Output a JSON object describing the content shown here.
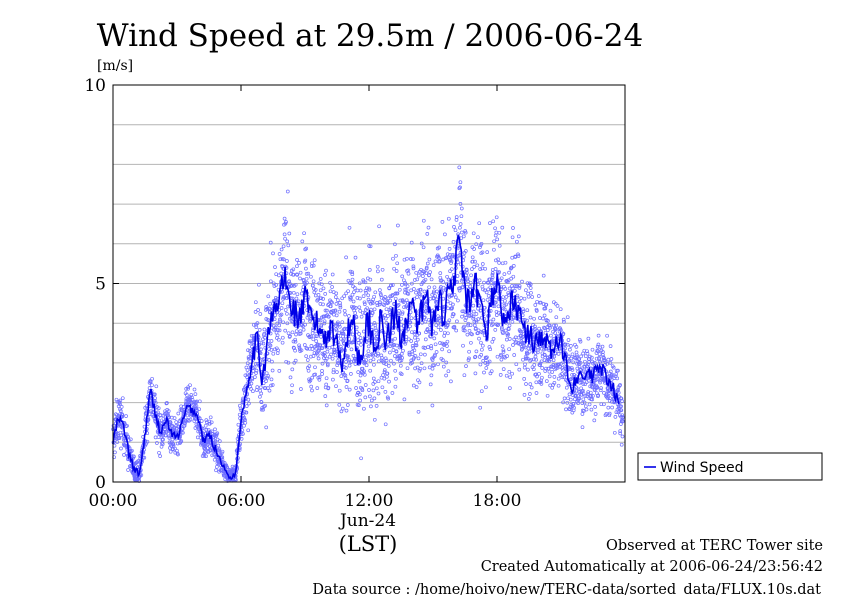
{
  "chart_data": {
    "type": "scatter",
    "title": "Wind Speed at 29.5m / 2006-06-24",
    "unit_label": "[m/s]",
    "ylim": [
      0,
      10
    ],
    "y_ticks": [
      "0",
      "5",
      "10"
    ],
    "xlim_hours": [
      0,
      24
    ],
    "x_ticks": [
      {
        "hour": 0,
        "label": "00:00"
      },
      {
        "hour": 6,
        "label": "06:00"
      },
      {
        "hour": 12,
        "label": "12:00"
      },
      {
        "hour": 18,
        "label": "18:00"
      }
    ],
    "date_label": "Jun-24",
    "x_axis_label": "(LST)",
    "grid": "horizontal",
    "legend": {
      "placement": "right",
      "entry": "Wind Speed"
    },
    "colors": {
      "points": "#6f6fff",
      "line": "#0000e6"
    },
    "series": [
      {
        "name": "Wind Speed",
        "x_hours": [
          0.0,
          0.25,
          0.5,
          0.75,
          1.0,
          1.25,
          1.5,
          1.75,
          2.0,
          2.25,
          2.5,
          2.75,
          3.0,
          3.25,
          3.5,
          3.75,
          4.0,
          4.25,
          4.5,
          4.75,
          5.0,
          5.25,
          5.5,
          5.75,
          6.0,
          6.25,
          6.5,
          6.75,
          7.0,
          7.25,
          7.5,
          7.75,
          8.0,
          8.25,
          8.5,
          8.75,
          9.0,
          9.25,
          9.5,
          9.75,
          10.0,
          10.25,
          10.5,
          10.75,
          11.0,
          11.25,
          11.5,
          11.75,
          12.0,
          12.25,
          12.5,
          12.75,
          13.0,
          13.25,
          13.5,
          13.75,
          14.0,
          14.25,
          14.5,
          14.75,
          15.0,
          15.25,
          15.5,
          15.75,
          16.0,
          16.25,
          16.5,
          16.75,
          17.0,
          17.25,
          17.5,
          17.75,
          18.0,
          18.25,
          18.5,
          18.75,
          19.0,
          19.25,
          19.5,
          19.75,
          20.0,
          20.25,
          20.5,
          20.75,
          21.0,
          21.25,
          21.5,
          21.75,
          22.0,
          22.25,
          22.5,
          22.75,
          23.0,
          23.25,
          23.5,
          23.75
        ],
        "mean": [
          1.0,
          1.6,
          1.4,
          0.7,
          0.3,
          0.2,
          1.2,
          2.3,
          1.7,
          1.2,
          1.6,
          1.2,
          1.1,
          1.5,
          1.9,
          1.8,
          1.6,
          1.0,
          1.2,
          0.9,
          0.6,
          0.3,
          0.1,
          0.2,
          1.6,
          2.3,
          3.1,
          3.6,
          2.6,
          3.6,
          4.2,
          4.5,
          5.2,
          4.6,
          4.3,
          4.1,
          4.6,
          4.2,
          4.0,
          3.8,
          3.7,
          4.0,
          3.4,
          3.1,
          3.7,
          4.2,
          3.0,
          3.6,
          4.1,
          3.3,
          4.0,
          3.6,
          3.8,
          4.3,
          3.7,
          4.1,
          4.5,
          3.8,
          4.4,
          4.6,
          3.9,
          4.7,
          4.2,
          4.9,
          5.2,
          6.2,
          4.6,
          4.4,
          4.9,
          4.3,
          3.8,
          4.6,
          5.1,
          4.2,
          4.0,
          4.7,
          4.3,
          3.8,
          3.7,
          3.5,
          3.7,
          3.6,
          3.3,
          3.4,
          3.5,
          3.0,
          2.4,
          2.7,
          2.5,
          2.8,
          2.6,
          2.9,
          2.8,
          2.4,
          2.3,
          1.9
        ],
        "spread": [
          0.5,
          0.5,
          0.5,
          0.4,
          0.3,
          0.3,
          0.5,
          0.5,
          0.5,
          0.4,
          0.4,
          0.4,
          0.4,
          0.4,
          0.4,
          0.4,
          0.4,
          0.4,
          0.4,
          0.4,
          0.3,
          0.2,
          0.2,
          0.2,
          0.6,
          0.8,
          1.0,
          1.1,
          1.2,
          1.3,
          1.4,
          1.5,
          1.5,
          1.5,
          1.4,
          1.4,
          1.4,
          1.4,
          1.3,
          1.4,
          1.4,
          1.4,
          1.3,
          1.3,
          1.4,
          1.5,
          1.4,
          1.5,
          1.5,
          1.5,
          1.5,
          1.4,
          1.4,
          1.5,
          1.5,
          1.5,
          1.5,
          1.5,
          1.5,
          1.5,
          1.5,
          1.5,
          1.5,
          1.5,
          1.5,
          1.5,
          1.5,
          1.5,
          1.5,
          1.4,
          1.4,
          1.4,
          1.4,
          1.3,
          1.3,
          1.3,
          1.3,
          1.2,
          1.2,
          1.1,
          1.0,
          1.0,
          1.0,
          1.0,
          0.9,
          0.9,
          0.8,
          0.8,
          0.8,
          0.8,
          0.8,
          0.8,
          0.7,
          0.7,
          0.7,
          0.6
        ]
      }
    ]
  },
  "footer": {
    "site": "Observed at TERC Tower site",
    "created": "Created Automatically at 2006-06-24/23:56:42",
    "source": "Data source : /home/hoivo/new/TERC-data/sorted_data/FLUX.10s.dat"
  }
}
